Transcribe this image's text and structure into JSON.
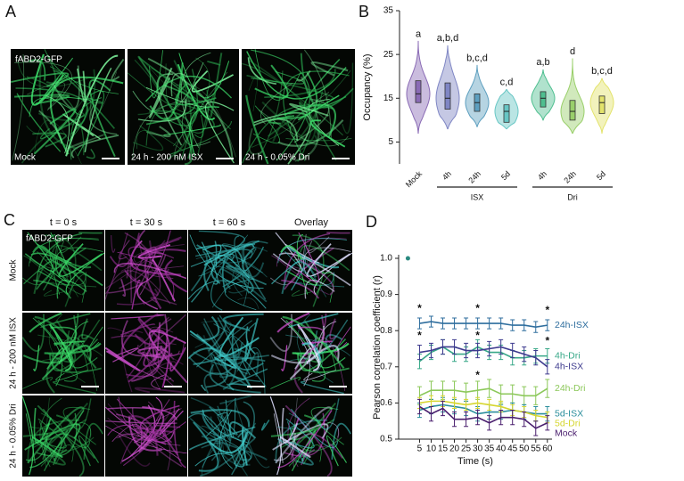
{
  "panels": {
    "A": {
      "label": "A",
      "channel": "fABD2-GFP",
      "images": [
        "Mock",
        "24 h - 200 nM ISX",
        "24 h - 0.05% Dri"
      ]
    },
    "C": {
      "label": "C",
      "channel": "fABD2-GFP",
      "columns": [
        "t = 0 s",
        "t = 30 s",
        "t = 60 s",
        "Overlay"
      ],
      "rows": [
        "Mock",
        "24 h - 200 nM ISX",
        "24 h - 0.05% Dri"
      ]
    }
  },
  "chart_data": [
    {
      "type": "violin",
      "panel_label": "B",
      "y_label": "Occupancy (%)",
      "categories": [
        "Mock",
        "4h",
        "24h",
        "5d",
        "4h",
        "24h",
        "5d"
      ],
      "groups": [
        {
          "name": "ISX",
          "start": 1,
          "end": 3
        },
        {
          "name": "Dri",
          "start": 4,
          "end": 6
        }
      ],
      "ylim": [
        0,
        35
      ],
      "yticks": [
        5,
        15,
        25,
        35
      ],
      "violins": [
        {
          "color": "#8a6bb5",
          "min": 7,
          "q1": 14,
          "median": 16,
          "q3": 19,
          "max": 28,
          "letter": "a"
        },
        {
          "color": "#7f86c4",
          "min": 8,
          "q1": 12.5,
          "median": 15,
          "q3": 18.5,
          "max": 27,
          "letter": "a,b,d"
        },
        {
          "color": "#5d9fbf",
          "min": 8.5,
          "q1": 12,
          "median": 14,
          "q3": 16,
          "max": 22.5,
          "letter": "b,c,d"
        },
        {
          "color": "#67c6c4",
          "min": 8,
          "q1": 9.5,
          "median": 12,
          "q3": 13.5,
          "max": 17,
          "letter": "c,d"
        },
        {
          "color": "#4fbf90",
          "min": 10,
          "q1": 13,
          "median": 15,
          "q3": 16.5,
          "max": 21.5,
          "letter": "a,b"
        },
        {
          "color": "#99cf6a",
          "min": 7,
          "q1": 10,
          "median": 12,
          "q3": 14.5,
          "max": 24,
          "letter": "d"
        },
        {
          "color": "#e3e36b",
          "min": 7,
          "q1": 11.5,
          "median": 14,
          "q3": 15.5,
          "max": 19.5,
          "letter": "b,c,d"
        }
      ]
    },
    {
      "type": "line",
      "panel_label": "D",
      "y_label": "Pearson correlation coefficient (r)",
      "x_label": "Time (s)",
      "x": [
        5,
        10,
        15,
        20,
        25,
        30,
        35,
        40,
        45,
        50,
        55,
        60
      ],
      "xlim": [
        -4,
        62
      ],
      "xticks": [
        5,
        10,
        15,
        20,
        25,
        30,
        35,
        40,
        45,
        50,
        55,
        60
      ],
      "ylim": [
        0.5,
        1.0
      ],
      "yticks": [
        0.5,
        0.6,
        0.7,
        0.8,
        0.9,
        {
          "value": 1,
          "label": "1.0"
        }
      ],
      "start_point": {
        "x": 0,
        "value": 1,
        "color": "#2a8a80"
      },
      "series": [
        {
          "name": "24h-ISX",
          "color": "#2f6e9e",
          "values": [
            0.82,
            0.825,
            0.82,
            0.82,
            0.82,
            0.82,
            0.82,
            0.82,
            0.815,
            0.815,
            0.81,
            0.815
          ],
          "errors": [
            0.015,
            0.015,
            0.015,
            0.015,
            0.015,
            0.015,
            0.015,
            0.015,
            0.015,
            0.015,
            0.015,
            0.015
          ]
        },
        {
          "name": "4h-Dri",
          "color": "#38a888",
          "values": [
            0.715,
            0.74,
            0.755,
            0.735,
            0.735,
            0.755,
            0.74,
            0.74,
            0.725,
            0.725,
            0.73,
            0.73
          ],
          "errors": [
            0.02,
            0.02,
            0.02,
            0.02,
            0.02,
            0.02,
            0.02,
            0.02,
            0.02,
            0.02,
            0.02,
            0.02
          ]
        },
        {
          "name": "4h-ISX",
          "color": "#3d3a8e",
          "values": [
            0.74,
            0.745,
            0.755,
            0.755,
            0.745,
            0.745,
            0.75,
            0.755,
            0.745,
            0.735,
            0.725,
            0.7
          ],
          "errors": [
            0.02,
            0.02,
            0.02,
            0.02,
            0.02,
            0.02,
            0.02,
            0.02,
            0.02,
            0.02,
            0.02,
            0.02
          ]
        },
        {
          "name": "24h-Dri",
          "color": "#8cc85a",
          "values": [
            0.62,
            0.635,
            0.635,
            0.635,
            0.63,
            0.635,
            0.64,
            0.625,
            0.625,
            0.62,
            0.62,
            0.64
          ],
          "errors": [
            0.025,
            0.025,
            0.025,
            0.025,
            0.025,
            0.025,
            0.025,
            0.025,
            0.025,
            0.025,
            0.025,
            0.025
          ]
        },
        {
          "name": "5d-ISX",
          "color": "#2a8e9c",
          "values": [
            0.58,
            0.59,
            0.595,
            0.59,
            0.585,
            0.57,
            0.575,
            0.575,
            0.58,
            0.575,
            0.57,
            0.57
          ],
          "errors": [
            0.02,
            0.02,
            0.02,
            0.02,
            0.02,
            0.02,
            0.02,
            0.02,
            0.02,
            0.02,
            0.02,
            0.02
          ]
        },
        {
          "name": "5d-Dri",
          "color": "#d6d630",
          "values": [
            0.6,
            0.605,
            0.605,
            0.6,
            0.595,
            0.6,
            0.595,
            0.59,
            0.58,
            0.575,
            0.565,
            0.56
          ],
          "errors": [
            0.015,
            0.015,
            0.015,
            0.015,
            0.015,
            0.015,
            0.015,
            0.015,
            0.015,
            0.015,
            0.015,
            0.015
          ]
        },
        {
          "name": "Mock",
          "color": "#4a1f6e",
          "values": [
            0.59,
            0.57,
            0.585,
            0.555,
            0.555,
            0.56,
            0.545,
            0.56,
            0.56,
            0.555,
            0.53,
            0.545
          ],
          "errors": [
            0.02,
            0.02,
            0.02,
            0.02,
            0.02,
            0.02,
            0.02,
            0.02,
            0.02,
            0.02,
            0.02,
            0.02
          ]
        }
      ],
      "annotations": [
        {
          "text": "*",
          "x": 5,
          "y": 0.86
        },
        {
          "text": "*",
          "x": 5,
          "y": 0.785
        },
        {
          "text": "*",
          "x": 30,
          "y": 0.86
        },
        {
          "text": "*",
          "x": 30,
          "y": 0.785
        },
        {
          "text": "*",
          "x": 30,
          "y": 0.675
        },
        {
          "text": "*",
          "x": 60,
          "y": 0.855
        },
        {
          "text": "*",
          "x": 60,
          "y": 0.77
        }
      ]
    }
  ]
}
